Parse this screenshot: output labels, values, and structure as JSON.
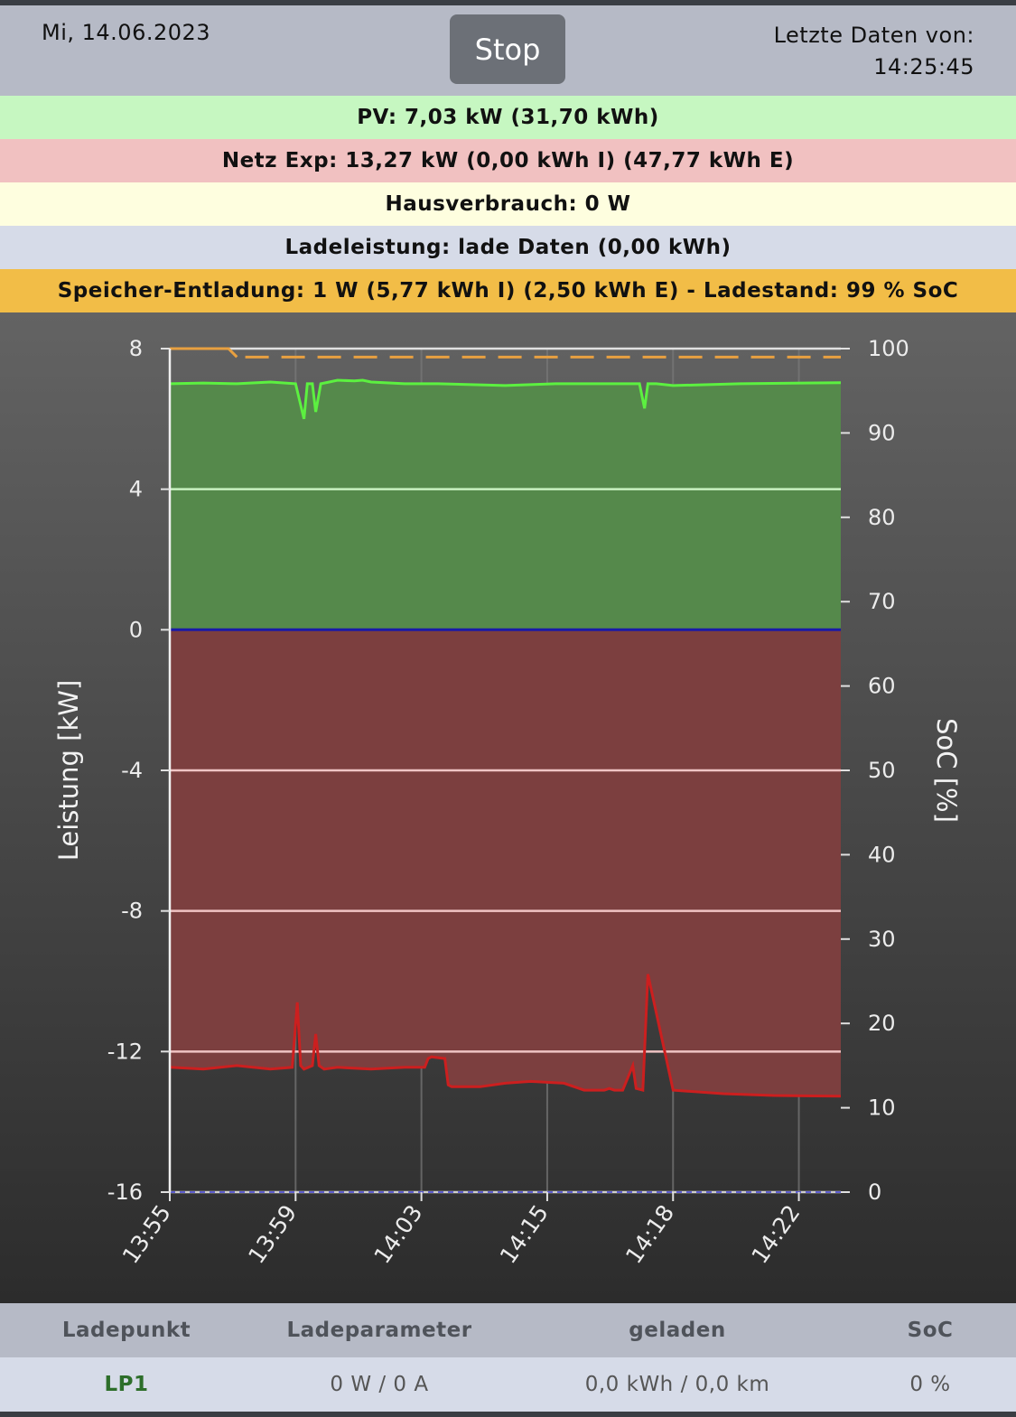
{
  "header": {
    "date": "Mi, 14.06.2023",
    "stop_label": "Stop",
    "last_data_label": "Letzte Daten von:",
    "last_data_time": "14:25:45"
  },
  "status": {
    "pv": "PV: 7,03 kW (31,70 kWh)",
    "grid": "Netz Exp: 13,27 kW (0,00 kWh I) (47,77 kWh E)",
    "house": "Hausverbrauch: 0 W",
    "charging": "Ladeleistung: lade Daten (0,00 kWh)",
    "storage": "Speicher-Entladung: 1 W (5,77 kWh I) (2,50 kWh E) - Ladestand: 99 % SoC"
  },
  "colors": {
    "pv_bg": "#c6f7c1",
    "grid_bg": "#f1c1c1",
    "house_bg": "#fefedf",
    "charging_bg": "#d6dbe8",
    "storage_bg": "#f2bd47",
    "pv_line": "#5cf040",
    "pv_fill": "#55894b",
    "grid_line": "#cc1f1f",
    "grid_fill": "#7c3f3f",
    "soc_line": "#e8a040",
    "zero_line": "#1a1aa8"
  },
  "chart_data": {
    "type": "area",
    "ylabel": "Leistung [kW]",
    "y2label": "SoC [%]",
    "ylim": [
      -16,
      8
    ],
    "y2lim": [
      0,
      100
    ],
    "yticks": [
      "8",
      "4",
      "0",
      "-4",
      "-8",
      "-12",
      "-16"
    ],
    "y2ticks": [
      "100",
      "90",
      "80",
      "70",
      "60",
      "50",
      "40",
      "30",
      "20",
      "10",
      "0"
    ],
    "xticks": [
      "13:55",
      "13:59",
      "14:03",
      "14:15",
      "14:18",
      "14:22"
    ],
    "grid": true,
    "series": [
      {
        "name": "PV",
        "axis": "left",
        "x": [
          0,
          20,
          40,
          60,
          75,
          80,
          82,
          85,
          87,
          90,
          95,
          100,
          110,
          115,
          120,
          140,
          160,
          200,
          230,
          250,
          280,
          283,
          285,
          287,
          290,
          300,
          340,
          400
        ],
        "y": [
          7.0,
          7.02,
          7.0,
          7.05,
          7.0,
          6.0,
          7.0,
          7.0,
          6.2,
          7.0,
          7.05,
          7.1,
          7.08,
          7.1,
          7.05,
          7.0,
          7.0,
          6.95,
          7.0,
          7.0,
          7.0,
          6.3,
          7.0,
          7.0,
          7.0,
          6.95,
          7.0,
          7.03
        ]
      },
      {
        "name": "Netz",
        "axis": "left",
        "x": [
          0,
          20,
          40,
          60,
          73,
          76,
          78,
          80,
          85,
          87,
          89,
          92,
          100,
          120,
          140,
          152,
          154,
          156,
          164,
          166,
          168,
          185,
          200,
          215,
          235,
          247,
          259,
          262,
          265,
          270,
          276,
          278,
          282,
          285,
          300,
          330,
          360,
          400
        ],
        "y": [
          -12.45,
          -12.5,
          -12.4,
          -12.5,
          -12.45,
          -10.6,
          -12.4,
          -12.5,
          -12.4,
          -11.5,
          -12.4,
          -12.5,
          -12.45,
          -12.5,
          -12.45,
          -12.45,
          -12.2,
          -12.15,
          -12.2,
          -12.95,
          -13.0,
          -13.0,
          -12.9,
          -12.85,
          -12.9,
          -13.1,
          -13.1,
          -13.05,
          -13.1,
          -13.1,
          -12.4,
          -13.05,
          -13.1,
          -9.8,
          -13.1,
          -13.2,
          -13.25,
          -13.27
        ]
      },
      {
        "name": "Speicher",
        "axis": "left",
        "x": [
          0,
          400
        ],
        "y": [
          0,
          0
        ]
      },
      {
        "name": "SoC",
        "axis": "right",
        "x": [
          0,
          35,
          40,
          45,
          400
        ],
        "y": [
          100,
          100,
          99,
          99,
          99
        ]
      }
    ]
  },
  "table": {
    "headers": [
      "Ladepunkt",
      "Ladeparameter",
      "geladen",
      "SoC"
    ],
    "rows": [
      {
        "name": "LP1",
        "params": "0 W / 0 A",
        "charged": "0,0 kWh / 0,0 km",
        "soc": "0 %"
      }
    ]
  }
}
